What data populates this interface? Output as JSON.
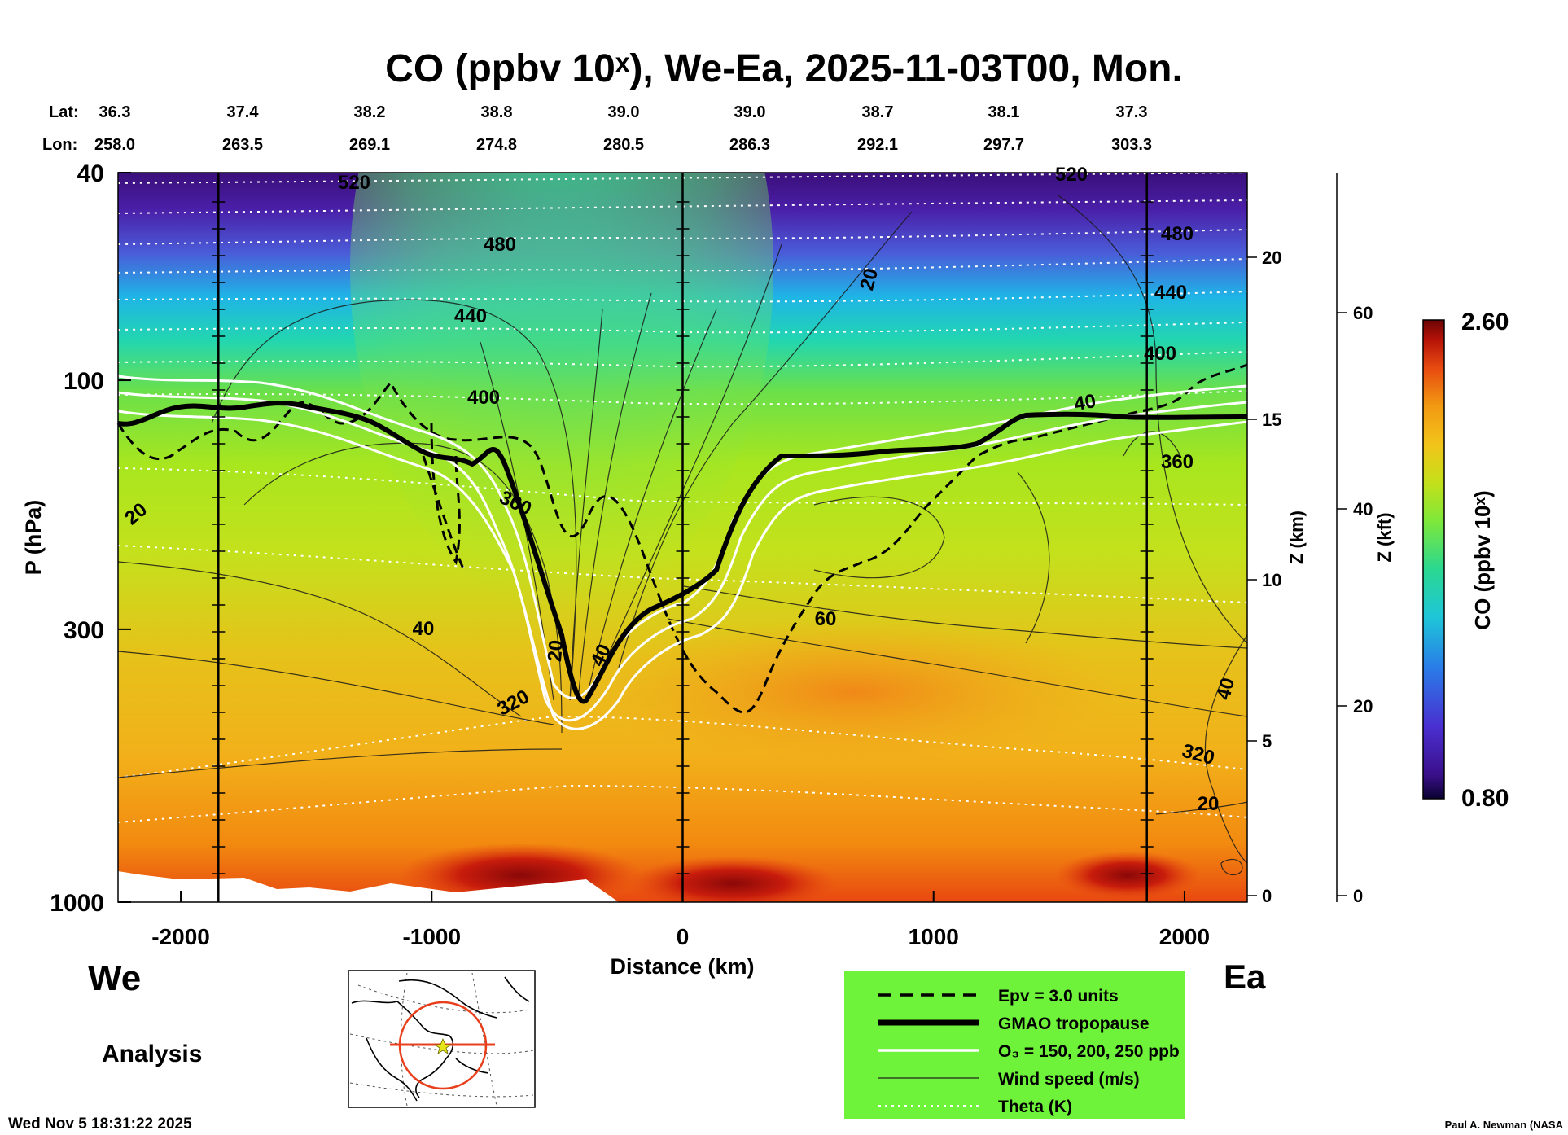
{
  "chart_data": {
    "type": "heatmap",
    "title": "CO (ppbv 10ˣ), We-Ea, 2025-11-03T00, Mon.",
    "lat_label": "Lat:",
    "lon_label": "Lon:",
    "lat": [
      "36.3",
      "37.4",
      "38.2",
      "38.8",
      "39.0",
      "39.0",
      "38.7",
      "38.1",
      "37.3"
    ],
    "lon": [
      "258.0",
      "263.5",
      "269.1",
      "274.8",
      "280.5",
      "286.3",
      "292.1",
      "297.7",
      "303.3"
    ],
    "xlabel": "Distance (km)",
    "ylabel": "P (hPa)",
    "xlim": [
      -2250,
      2250
    ],
    "xticks": [
      -2000,
      -1000,
      0,
      1000,
      2000
    ],
    "xtick_labels": [
      "-2000",
      "-1000",
      "0",
      "1000",
      "2000"
    ],
    "yticks": [
      40,
      100,
      300,
      1000
    ],
    "ytick_labels": [
      "40",
      "100",
      "300",
      "1000"
    ],
    "ylim": [
      1000,
      40
    ],
    "z_km_label": "Z (km)",
    "z_km_ticks": [
      "0",
      "5",
      "10",
      "15",
      "20"
    ],
    "z_kft_label": "Z (kft)",
    "z_kft_ticks": [
      "0",
      "20",
      "40",
      "60"
    ],
    "colorbar_label": "CO (ppbv 10ˣ)",
    "colorbar_range": [
      0.8,
      2.6
    ],
    "colorbar_max_label": "2.60",
    "colorbar_min_label": "0.80",
    "theta_contours": [
      {
        "level": 320,
        "label": "320"
      },
      {
        "level": 360,
        "label": "360"
      },
      {
        "level": 400,
        "label": "400"
      },
      {
        "level": 440,
        "label": "440"
      },
      {
        "level": 480,
        "label": "480"
      },
      {
        "level": 520,
        "label": "520"
      }
    ],
    "wind_contours": [
      {
        "level": 20,
        "label": "20"
      },
      {
        "level": 40,
        "label": "40"
      },
      {
        "level": 60,
        "label": "60"
      }
    ],
    "vertical_markers_km": [
      -1850,
      0,
      1850
    ]
  },
  "labels": {
    "west": "We",
    "east": "Ea",
    "analysis": "Analysis",
    "timestamp": "Wed Nov  5 18:31:22 2025",
    "credit": "Paul A. Newman (NASA"
  },
  "legend": {
    "items": [
      {
        "label": "Epv = 3.0 units",
        "style": "dashed"
      },
      {
        "label": "GMAO tropopause",
        "style": "thick"
      },
      {
        "label": "O₃ = 150, 200, 250 ppb",
        "style": "white"
      },
      {
        "label": "Wind speed (m/s)",
        "style": "thin"
      },
      {
        "label": "Theta (K)",
        "style": "dotted"
      }
    ]
  },
  "colors": {
    "legend_bg": "#6ef23a",
    "map_circle": "#e8401c"
  }
}
